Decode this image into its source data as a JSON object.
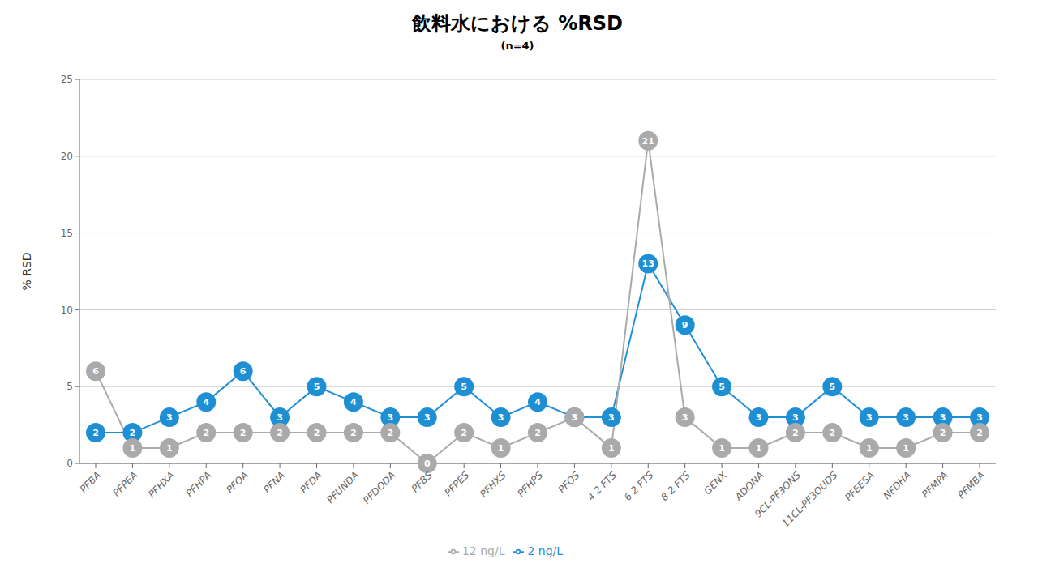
{
  "chart_data": {
    "type": "line",
    "title": "飲料水における %RSD",
    "subtitle": "(n=4)",
    "ylabel": "% RSD",
    "categories": [
      "PFBA",
      "PFPEA",
      "PFHXA",
      "PFHPA",
      "PFOA",
      "PFNA",
      "PFDA",
      "PFUNDA",
      "PFDODA",
      "PFBS",
      "PFPES",
      "PFHXS",
      "PFHPS",
      "PFOS",
      "4 2 FTS",
      "6 2 FTS",
      "8 2 FTS",
      "GENX",
      "ADONA",
      "9CL-PF3ONS",
      "11CL-PF3OUDS",
      "PFEESA",
      "NFDHA",
      "PFMPA",
      "PFMBA"
    ],
    "series": [
      {
        "name": "2 ng/L",
        "color": "#1F8FD4",
        "marker": "circle",
        "values": [
          2,
          2,
          3,
          4,
          6,
          3,
          5,
          4,
          3,
          3,
          5,
          3,
          4,
          3,
          3,
          13,
          9,
          5,
          3,
          3,
          5,
          3,
          3,
          3,
          3
        ]
      },
      {
        "name": "12 ng/L",
        "color": "#AAAAAA",
        "marker": "circle",
        "values": [
          6,
          1,
          1,
          2,
          2,
          2,
          2,
          2,
          2,
          0,
          2,
          1,
          2,
          3,
          1,
          21,
          3,
          1,
          1,
          2,
          2,
          1,
          1,
          2,
          2
        ]
      }
    ],
    "ylim": [
      0,
      25
    ],
    "yticks": [
      0,
      5,
      10,
      15,
      20,
      25
    ],
    "grid": true,
    "legend": "bottom",
    "data_labels": true
  }
}
